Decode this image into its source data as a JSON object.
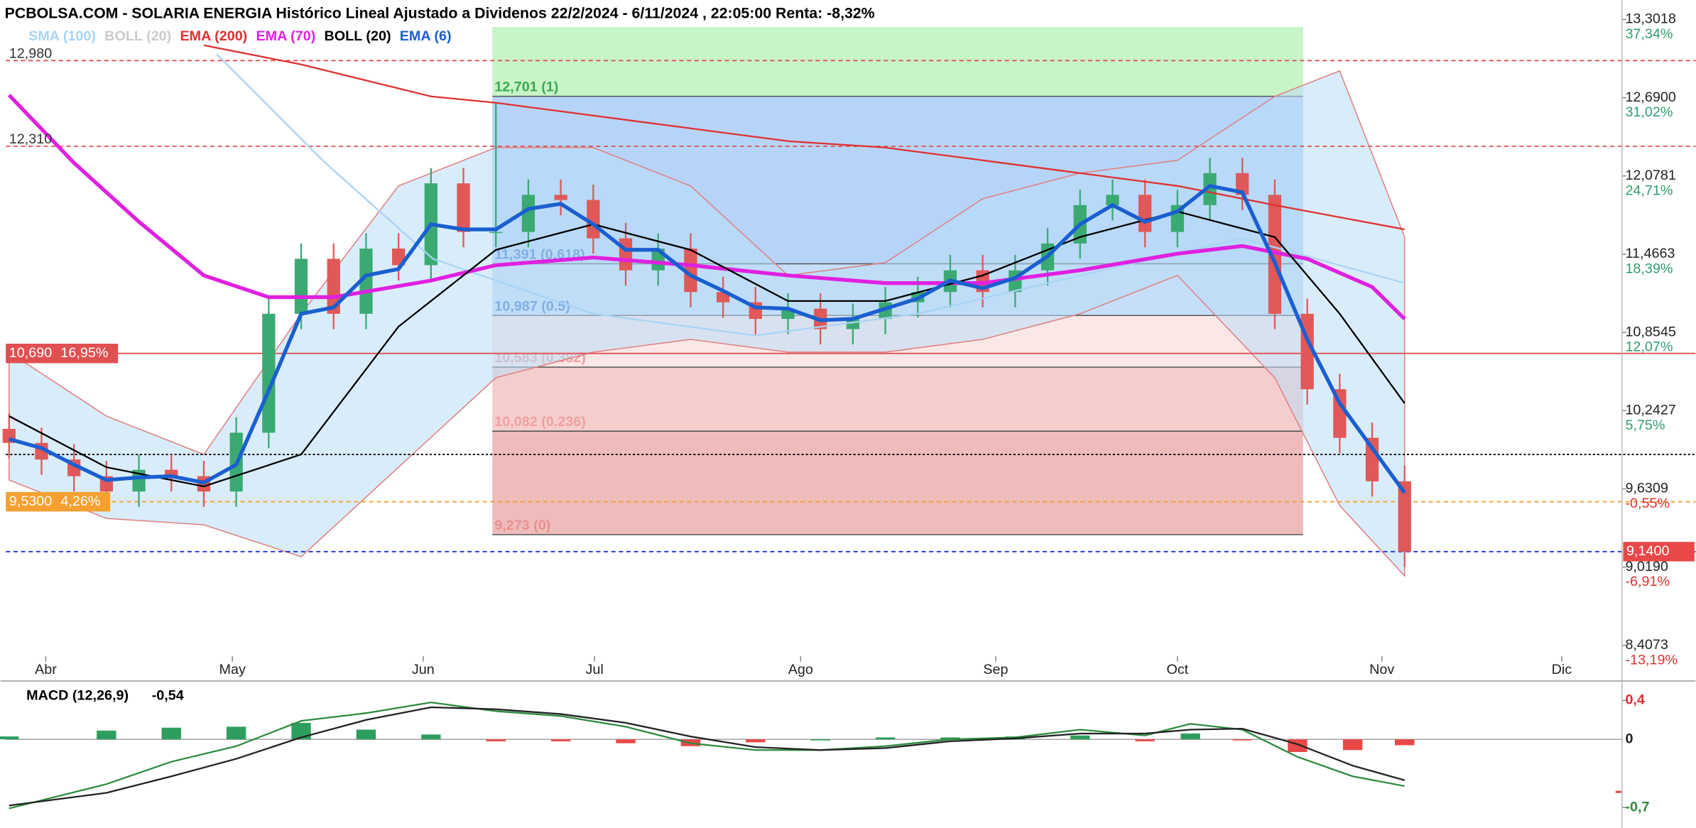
{
  "chart_data": {
    "type": "candlestick",
    "title": "PCBOLSA.COM - SOLARIA ENERGIA Histórico Lineal Ajustado a Dividenos 22/2/2024 - 6/11/2024 , 22:05:00 Renta: -8,32%",
    "xlim": [
      -0.1,
      49.7
    ],
    "xticks": [
      {
        "value": 1.13,
        "label": "Abr"
      },
      {
        "value": 6.88,
        "label": "May"
      },
      {
        "value": 12.76,
        "label": "Jun"
      },
      {
        "value": 18.04,
        "label": "Jul"
      },
      {
        "value": 24.39,
        "label": "Ago"
      },
      {
        "value": 30.4,
        "label": "Sep"
      },
      {
        "value": 36.0,
        "label": "Oct"
      },
      {
        "value": 42.3,
        "label": "Nov"
      },
      {
        "value": 47.84,
        "label": "Dic"
      }
    ],
    "ylim": [
      8.4073,
      13.3018
    ],
    "yticks": [
      {
        "value": 13.3018,
        "label": "13,3018"
      },
      {
        "value": 12.69,
        "label": "12,6900"
      },
      {
        "value": 12.0781,
        "label": "12,0781"
      },
      {
        "value": 11.4663,
        "label": "11,4663"
      },
      {
        "value": 10.8545,
        "label": "10,8545"
      },
      {
        "value": 10.2427,
        "label": "10,2427"
      },
      {
        "value": 9.6309,
        "label": "9,6309"
      },
      {
        "value": 9.019,
        "label": "9,0190"
      },
      {
        "value": 8.4073,
        "label": "8,4073"
      }
    ],
    "ytick_pct_labels": [
      "37,34%",
      "31,02%",
      "24,71%",
      "18,39%",
      "12,07%",
      "5,75%",
      "-0,55%",
      "-6,91%",
      "-13,19%"
    ],
    "up_color": "#3aaa72",
    "down_color": "#e05858",
    "x": [
      0,
      1,
      2,
      3,
      4,
      5,
      6,
      7,
      8,
      9,
      10,
      11,
      12,
      13,
      14,
      15,
      16,
      17,
      18,
      19,
      20,
      21,
      22,
      23,
      24,
      25,
      26,
      27,
      28,
      29,
      30,
      31,
      32,
      33,
      34,
      35,
      36,
      37,
      38,
      39,
      40,
      41,
      42,
      43
    ],
    "open": [
      10.1,
      9.99,
      9.86,
      9.73,
      9.61,
      9.78,
      9.73,
      9.61,
      10.07,
      11.0,
      11.43,
      11.0,
      11.51,
      11.38,
      12.02,
      11.64,
      11.64,
      11.93,
      11.89,
      11.59,
      11.34,
      11.51,
      11.17,
      11.09,
      10.96,
      11.04,
      10.88,
      10.96,
      11.09,
      11.17,
      11.34,
      11.17,
      11.34,
      11.55,
      11.85,
      11.93,
      11.64,
      11.85,
      12.1,
      11.93,
      11.0,
      10.41,
      10.03,
      9.69
    ],
    "high": [
      10.22,
      10.11,
      9.98,
      9.85,
      9.9,
      9.9,
      9.85,
      10.19,
      11.12,
      11.55,
      11.55,
      11.63,
      11.63,
      12.14,
      12.14,
      12.65,
      12.05,
      12.05,
      12.01,
      11.71,
      11.63,
      11.63,
      11.29,
      11.21,
      11.16,
      11.16,
      11.08,
      11.21,
      11.29,
      11.46,
      11.46,
      11.46,
      11.67,
      11.97,
      12.05,
      12.05,
      11.97,
      12.22,
      12.22,
      12.05,
      11.12,
      10.53,
      10.15,
      9.81
    ],
    "low": [
      9.87,
      9.74,
      9.61,
      9.49,
      9.49,
      9.61,
      9.49,
      9.49,
      9.95,
      10.88,
      10.88,
      10.88,
      11.26,
      11.26,
      11.52,
      11.52,
      11.52,
      11.77,
      11.47,
      11.22,
      11.22,
      11.05,
      10.97,
      10.84,
      10.84,
      10.76,
      10.76,
      10.84,
      10.97,
      11.05,
      11.05,
      11.05,
      11.22,
      11.43,
      11.73,
      11.52,
      11.52,
      11.73,
      11.81,
      10.88,
      10.29,
      9.91,
      9.57,
      9.02
    ],
    "close": [
      9.99,
      9.86,
      9.73,
      9.61,
      9.78,
      9.73,
      9.61,
      10.07,
      11.0,
      11.43,
      11.0,
      11.51,
      11.38,
      12.02,
      11.64,
      11.64,
      11.93,
      11.89,
      11.59,
      11.34,
      11.51,
      11.17,
      11.09,
      10.96,
      11.04,
      10.88,
      10.96,
      11.09,
      11.17,
      11.34,
      11.17,
      11.34,
      11.55,
      11.85,
      11.93,
      11.64,
      11.85,
      12.1,
      11.93,
      11.0,
      10.41,
      10.03,
      9.69,
      9.14
    ],
    "series": [
      {
        "name": "SMA (100)",
        "color": "#a8d4f5",
        "x": [
          6.4,
          9.7,
          13.06,
          18,
          23,
          28,
          33,
          38,
          43
        ],
        "values": [
          13.03,
          12.19,
          11.43,
          11.0,
          10.83,
          11.0,
          11.3,
          11.59,
          11.24
        ]
      },
      {
        "name": "BOLL (20)",
        "color": "#cccccc",
        "x": [
          0,
          3,
          6,
          9,
          12,
          15,
          18,
          21,
          24,
          27,
          30,
          33,
          36,
          39,
          41,
          43
        ],
        "upper": [
          10.7,
          10.2,
          9.9,
          11.0,
          12.0,
          12.3,
          12.3,
          12.0,
          11.3,
          11.4,
          11.9,
          12.1,
          12.2,
          12.7,
          12.9,
          11.6
        ],
        "lower": [
          9.7,
          9.4,
          9.35,
          9.1,
          9.8,
          10.5,
          10.7,
          10.8,
          10.7,
          10.7,
          10.8,
          11.0,
          11.3,
          10.5,
          9.5,
          8.95
        ]
      },
      {
        "name": "EMA (200)",
        "color": "#e03030",
        "x": [
          6,
          9,
          13,
          15,
          18,
          21,
          24,
          27,
          30,
          33,
          36,
          39,
          43
        ],
        "values": [
          13.1,
          12.95,
          12.7,
          12.65,
          12.55,
          12.45,
          12.35,
          12.3,
          12.2,
          12.1,
          12.0,
          11.85,
          11.66
        ]
      },
      {
        "name": "EMA (70)",
        "color": "#e020e0",
        "x": [
          0,
          2,
          4,
          6,
          8,
          10,
          13,
          15,
          18,
          21,
          24,
          27,
          30,
          33,
          36,
          38,
          40,
          42,
          43
        ],
        "values": [
          12.71,
          12.18,
          11.72,
          11.3,
          11.13,
          11.13,
          11.26,
          11.38,
          11.44,
          11.38,
          11.3,
          11.24,
          11.24,
          11.34,
          11.47,
          11.53,
          11.43,
          11.21,
          10.96
        ]
      },
      {
        "name": "BOLL (20)",
        "color": "#000000",
        "x": [
          0,
          3,
          6,
          9,
          12,
          15,
          18,
          21,
          24,
          27,
          30,
          33,
          36,
          39,
          41,
          43
        ],
        "values": [
          10.2,
          9.8,
          9.65,
          9.9,
          10.9,
          11.5,
          11.7,
          11.5,
          11.1,
          11.1,
          11.3,
          11.6,
          11.8,
          11.6,
          11.0,
          10.3
        ]
      },
      {
        "name": "EMA (6)",
        "color": "#1a5fd0",
        "x": [
          0,
          1,
          2,
          3,
          4,
          5,
          6,
          7,
          8,
          9,
          10,
          11,
          12,
          13,
          14,
          15,
          16,
          17,
          18,
          19,
          20,
          21,
          22,
          23,
          24,
          25,
          26,
          27,
          28,
          29,
          30,
          31,
          32,
          33,
          34,
          35,
          36,
          37,
          38,
          39,
          40,
          41,
          42,
          43
        ],
        "values": [
          10.02,
          9.95,
          9.82,
          9.7,
          9.72,
          9.73,
          9.68,
          9.82,
          10.4,
          11.0,
          11.05,
          11.3,
          11.35,
          11.7,
          11.66,
          11.66,
          11.82,
          11.86,
          11.7,
          11.5,
          11.5,
          11.3,
          11.18,
          11.05,
          11.04,
          10.95,
          10.96,
          11.04,
          11.12,
          11.26,
          11.2,
          11.28,
          11.45,
          11.7,
          11.85,
          11.72,
          11.8,
          12.0,
          11.95,
          11.4,
          10.8,
          10.3,
          9.95,
          9.6
        ]
      }
    ],
    "fib_levels": [
      {
        "value": 12.701,
        "label": "12,701 (1)"
      },
      {
        "value": 11.391,
        "label": "11,391 (0.618)"
      },
      {
        "value": 10.987,
        "label": "10,987 (0.5)"
      },
      {
        "value": 10.583,
        "label": "10,583 (0.382)"
      },
      {
        "value": 10.082,
        "label": "10,082 (0.236)"
      },
      {
        "value": 9.273,
        "label": "9,273 (0)"
      }
    ],
    "hlines": [
      {
        "value": 12.98,
        "label": "12,980",
        "color": "#e05050",
        "style": "dashed",
        "label_side": "left",
        "box": false
      },
      {
        "value": 12.31,
        "label": "12,310",
        "color": "#e05050",
        "style": "dashed",
        "label_side": "left",
        "box": false
      },
      {
        "value": 10.69,
        "label": "10,690",
        "pct_label": "16,95%",
        "color": "#e05050",
        "style": "solid",
        "label_side": "left",
        "box": true
      },
      {
        "value": 9.9,
        "color": "#000000",
        "style": "dotted"
      },
      {
        "value": 9.53,
        "label": "9,5300",
        "pct_label": "4,26%",
        "color": "#f5a030",
        "style": "dashed",
        "label_side": "left",
        "box": true
      },
      {
        "value": 9.14,
        "label": "9,1400",
        "color": "#2030e0",
        "label_color": "#e84848",
        "style": "dashed",
        "label_side": "right",
        "box": true
      }
    ],
    "macd": {
      "type": "line",
      "title": "MACD (12,26,9)",
      "current": {
        "value": -0.54,
        "label": "-0,54"
      },
      "ylim": [
        -0.7,
        0.4
      ],
      "yticks": [
        {
          "value": 0.4,
          "label": "0,4"
        },
        0,
        {
          "value": -0.7,
          "label": "-0,7"
        }
      ],
      "x": [
        0,
        3,
        5,
        7,
        9,
        11,
        13,
        15,
        17,
        19,
        21,
        23,
        25,
        27,
        29,
        31,
        33,
        35,
        36.4,
        38,
        39.7,
        41.4,
        43
      ],
      "lines": [
        {
          "color": "#2e8b3e",
          "values": [
            -0.71,
            -0.46,
            -0.23,
            -0.07,
            0.19,
            0.27,
            0.38,
            0.29,
            0.24,
            0.13,
            -0.04,
            -0.11,
            -0.11,
            -0.07,
            0,
            0.02,
            0.1,
            0.04,
            0.16,
            0.1,
            -0.18,
            -0.38,
            -0.48
          ]
        },
        {
          "color": "#222222",
          "values": [
            -0.68,
            -0.55,
            -0.38,
            -0.2,
            0.02,
            0.2,
            0.33,
            0.31,
            0.26,
            0.17,
            0.03,
            -0.08,
            -0.11,
            -0.09,
            -0.02,
            0.01,
            0.06,
            0.06,
            0.1,
            0.11,
            -0.05,
            -0.27,
            -0.42
          ]
        }
      ],
      "histogram": [
        0.03,
        0.09,
        0.12,
        0.13,
        0.17,
        0.1,
        0.05,
        -0.02,
        -0.02,
        -0.04,
        -0.07,
        -0.03,
        0,
        0.02,
        0.02,
        0.03,
        0.04,
        -0.02,
        0.06,
        -0.01,
        -0.13,
        -0.11,
        -0.06
      ]
    }
  }
}
